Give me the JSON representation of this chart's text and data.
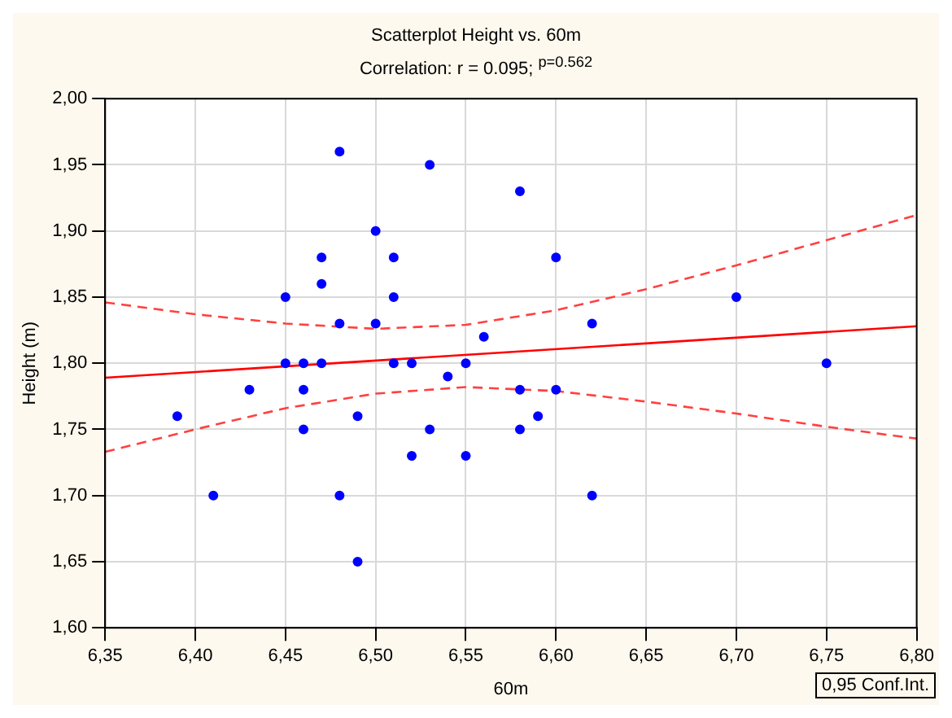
{
  "chart_data": {
    "type": "scatter",
    "title": "Scatterplot Height vs. 60m",
    "subtitle": "Correlation: r = 0.095; $^{p=0.562}$",
    "xlabel": "60m",
    "ylabel": "Height (m)",
    "x": [
      6.39,
      6.41,
      6.43,
      6.45,
      6.45,
      6.46,
      6.46,
      6.46,
      6.47,
      6.47,
      6.47,
      6.48,
      6.48,
      6.48,
      6.49,
      6.49,
      6.5,
      6.5,
      6.51,
      6.51,
      6.51,
      6.52,
      6.52,
      6.53,
      6.53,
      6.54,
      6.55,
      6.55,
      6.56,
      6.58,
      6.58,
      6.58,
      6.59,
      6.6,
      6.6,
      6.62,
      6.62,
      6.7,
      6.75
    ],
    "series": [
      {
        "color": "#0000ff",
        "marker": "circle",
        "values": [
          1.76,
          1.7,
          1.78,
          1.85,
          1.8,
          1.8,
          1.78,
          1.75,
          1.88,
          1.86,
          1.8,
          1.96,
          1.83,
          1.7,
          1.76,
          1.65,
          1.9,
          1.83,
          1.88,
          1.85,
          1.8,
          1.8,
          1.73,
          1.95,
          1.75,
          1.79,
          1.8,
          1.73,
          1.82,
          1.93,
          1.78,
          1.75,
          1.76,
          1.88,
          1.78,
          1.83,
          1.7,
          1.85,
          1.8
        ]
      },
      {
        "type": "line",
        "color": "#ff0000",
        "line_style": "solid",
        "x": [
          6.35,
          6.8
        ],
        "values": [
          1.789,
          1.828
        ]
      },
      {
        "type": "line",
        "color": "#ff4040",
        "line_style": "dashed",
        "x": [
          6.35,
          6.4,
          6.45,
          6.5,
          6.55,
          6.6,
          6.65,
          6.7,
          6.75,
          6.8
        ],
        "values": [
          1.846,
          1.837,
          1.83,
          1.826,
          1.829,
          1.84,
          1.856,
          1.874,
          1.893,
          1.912
        ]
      },
      {
        "type": "line",
        "color": "#ff4040",
        "line_style": "dashed",
        "x": [
          6.35,
          6.4,
          6.45,
          6.5,
          6.55,
          6.6,
          6.65,
          6.7,
          6.75,
          6.8
        ],
        "values": [
          1.733,
          1.75,
          1.766,
          1.777,
          1.782,
          1.779,
          1.771,
          1.762,
          1.752,
          1.743
        ]
      }
    ],
    "xlim": [
      6.35,
      6.8
    ],
    "xticks": [
      {
        "value": 6.35,
        "label": "6,35"
      },
      {
        "value": 6.4,
        "label": "6,40"
      },
      {
        "value": 6.45,
        "label": "6,45"
      },
      {
        "value": 6.5,
        "label": "6,50"
      },
      {
        "value": 6.55,
        "label": "6,55"
      },
      {
        "value": 6.6,
        "label": "6,60"
      },
      {
        "value": 6.65,
        "label": "6,65"
      },
      {
        "value": 6.7,
        "label": "6,70"
      },
      {
        "value": 6.75,
        "label": "6,75"
      },
      {
        "value": 6.8,
        "label": "6,80"
      }
    ],
    "ylim": [
      1.6,
      2.0
    ],
    "yticks": [
      {
        "value": 1.6,
        "label": "1,60"
      },
      {
        "value": 1.65,
        "label": "1,65"
      },
      {
        "value": 1.7,
        "label": "1,70"
      },
      {
        "value": 1.75,
        "label": "1,75"
      },
      {
        "value": 1.8,
        "label": "1,80"
      },
      {
        "value": 1.85,
        "label": "1,85"
      },
      {
        "value": 1.9,
        "label": "1,90"
      },
      {
        "value": 1.95,
        "label": "1,95"
      },
      {
        "value": 2.0,
        "label": "2,00"
      }
    ],
    "grid": true,
    "annotations": [
      "0,95 Conf.Int."
    ]
  }
}
